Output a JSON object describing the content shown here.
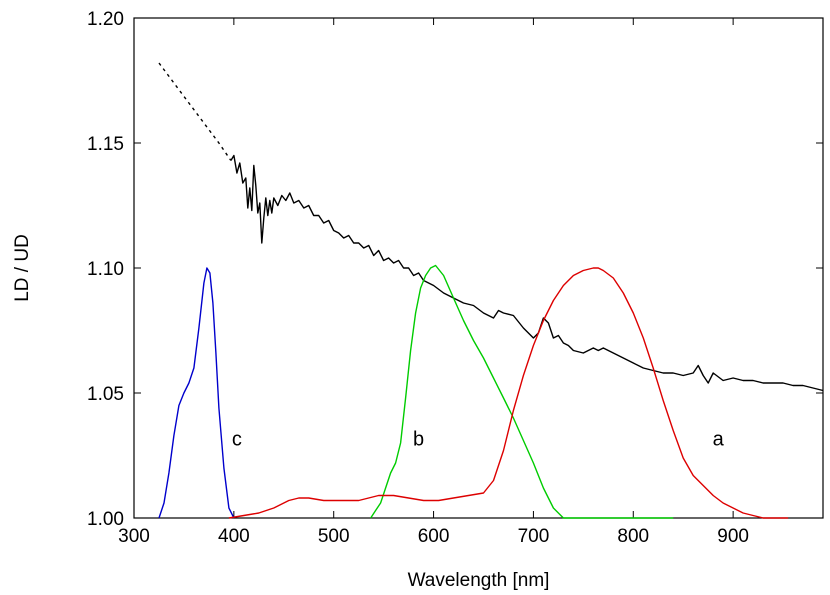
{
  "chart_data": {
    "type": "line",
    "title": "",
    "xlabel": "Wavelength [nm]",
    "ylabel": "LD / UD",
    "xlim": [
      300,
      990
    ],
    "ylim": [
      1.0,
      1.2
    ],
    "xticks": [
      300,
      400,
      500,
      600,
      700,
      800,
      900
    ],
    "xtick_labels": [
      "300",
      "400",
      "500",
      "600",
      "700",
      "800",
      "900"
    ],
    "yticks": [
      1.0,
      1.05,
      1.1,
      1.15,
      1.2
    ],
    "ytick_labels": [
      "1.00",
      "1.05",
      "1.10",
      "1.15",
      "1.20"
    ],
    "grid": false,
    "legend": "none",
    "series": [
      {
        "label": "",
        "color": "#000000",
        "dash": "3,4",
        "x": [
          325,
          340,
          355,
          370,
          385,
          397
        ],
        "y": [
          1.182,
          1.174,
          1.166,
          1.158,
          1.15,
          1.143
        ]
      },
      {
        "label": "",
        "color": "#000000",
        "dash": "",
        "x": [
          397,
          400,
          403,
          406,
          409,
          412,
          414,
          416,
          418,
          420,
          422,
          424,
          426,
          428,
          430,
          432,
          434,
          436,
          438,
          440,
          444,
          448,
          452,
          456,
          460,
          465,
          470,
          475,
          480,
          485,
          490,
          495,
          500,
          505,
          510,
          515,
          520,
          525,
          530,
          535,
          540,
          545,
          550,
          555,
          560,
          565,
          570,
          575,
          580,
          585,
          590,
          600,
          610,
          620,
          630,
          640,
          650,
          660,
          665,
          670,
          680,
          690,
          700,
          705,
          710,
          715,
          720,
          725,
          730,
          735,
          740,
          750,
          760,
          765,
          770,
          780,
          790,
          800,
          810,
          820,
          830,
          840,
          850,
          860,
          865,
          870,
          875,
          880,
          890,
          900,
          910,
          920,
          930,
          940,
          950,
          960,
          970,
          980,
          990
        ],
        "y": [
          1.143,
          1.145,
          1.138,
          1.142,
          1.134,
          1.136,
          1.124,
          1.132,
          1.123,
          1.141,
          1.133,
          1.122,
          1.126,
          1.11,
          1.12,
          1.128,
          1.121,
          1.127,
          1.122,
          1.128,
          1.125,
          1.129,
          1.127,
          1.13,
          1.126,
          1.127,
          1.124,
          1.125,
          1.121,
          1.121,
          1.118,
          1.119,
          1.115,
          1.114,
          1.112,
          1.113,
          1.11,
          1.11,
          1.108,
          1.109,
          1.105,
          1.107,
          1.103,
          1.104,
          1.102,
          1.103,
          1.1,
          1.1,
          1.097,
          1.098,
          1.095,
          1.093,
          1.09,
          1.088,
          1.086,
          1.085,
          1.082,
          1.08,
          1.083,
          1.082,
          1.081,
          1.076,
          1.072,
          1.074,
          1.08,
          1.078,
          1.072,
          1.073,
          1.07,
          1.069,
          1.067,
          1.066,
          1.068,
          1.067,
          1.068,
          1.066,
          1.064,
          1.062,
          1.06,
          1.059,
          1.058,
          1.058,
          1.057,
          1.058,
          1.061,
          1.057,
          1.054,
          1.058,
          1.055,
          1.056,
          1.055,
          1.055,
          1.054,
          1.054,
          1.054,
          1.053,
          1.053,
          1.052,
          1.051
        ]
      },
      {
        "label": "c",
        "color": "#0000cc",
        "dash": "",
        "x": [
          325,
          330,
          335,
          340,
          345,
          350,
          355,
          360,
          365,
          370,
          373,
          376,
          379,
          382,
          385,
          390,
          395,
          400
        ],
        "y": [
          1.0,
          1.006,
          1.018,
          1.033,
          1.045,
          1.05,
          1.054,
          1.06,
          1.076,
          1.094,
          1.1,
          1.098,
          1.086,
          1.066,
          1.044,
          1.02,
          1.004,
          1.0
        ]
      },
      {
        "label": "b",
        "color": "#00cc00",
        "dash": "",
        "x": [
          537,
          542,
          547,
          552,
          557,
          562,
          567,
          572,
          577,
          582,
          587,
          592,
          597,
          602,
          610,
          620,
          630,
          640,
          650,
          660,
          670,
          680,
          690,
          700,
          710,
          720,
          730,
          740,
          750,
          760,
          770,
          780,
          790,
          800,
          810,
          820,
          830,
          840
        ],
        "y": [
          1.0,
          1.003,
          1.006,
          1.012,
          1.018,
          1.022,
          1.03,
          1.048,
          1.067,
          1.082,
          1.092,
          1.097,
          1.1,
          1.101,
          1.097,
          1.088,
          1.079,
          1.071,
          1.064,
          1.056,
          1.048,
          1.04,
          1.031,
          1.022,
          1.012,
          1.004,
          0.998,
          0.993,
          0.988,
          0.985,
          0.983,
          0.982,
          0.981,
          0.98,
          0.98,
          0.98,
          0.98,
          0.98
        ]
      },
      {
        "label": "a",
        "color": "#dd0000",
        "dash": "",
        "x": [
          395,
          410,
          425,
          440,
          455,
          465,
          475,
          490,
          510,
          525,
          545,
          560,
          575,
          590,
          605,
          620,
          635,
          650,
          660,
          670,
          680,
          690,
          700,
          710,
          720,
          730,
          740,
          750,
          760,
          765,
          770,
          780,
          790,
          800,
          810,
          820,
          830,
          840,
          850,
          860,
          870,
          880,
          890,
          900,
          910,
          920,
          930,
          940,
          955
        ],
        "y": [
          1.0,
          1.001,
          1.002,
          1.004,
          1.007,
          1.008,
          1.008,
          1.007,
          1.007,
          1.007,
          1.009,
          1.009,
          1.008,
          1.007,
          1.007,
          1.008,
          1.009,
          1.01,
          1.015,
          1.027,
          1.043,
          1.057,
          1.069,
          1.079,
          1.087,
          1.093,
          1.097,
          1.099,
          1.1,
          1.1,
          1.099,
          1.096,
          1.09,
          1.082,
          1.072,
          1.06,
          1.047,
          1.035,
          1.024,
          1.017,
          1.013,
          1.009,
          1.006,
          1.004,
          1.002,
          1.001,
          1.0,
          1.0,
          1.0
        ]
      }
    ],
    "annotations": [
      {
        "text": "c",
        "x": 403,
        "y": 1.029
      },
      {
        "text": "b",
        "x": 585,
        "y": 1.029
      },
      {
        "text": "a",
        "x": 885,
        "y": 1.029
      }
    ]
  }
}
